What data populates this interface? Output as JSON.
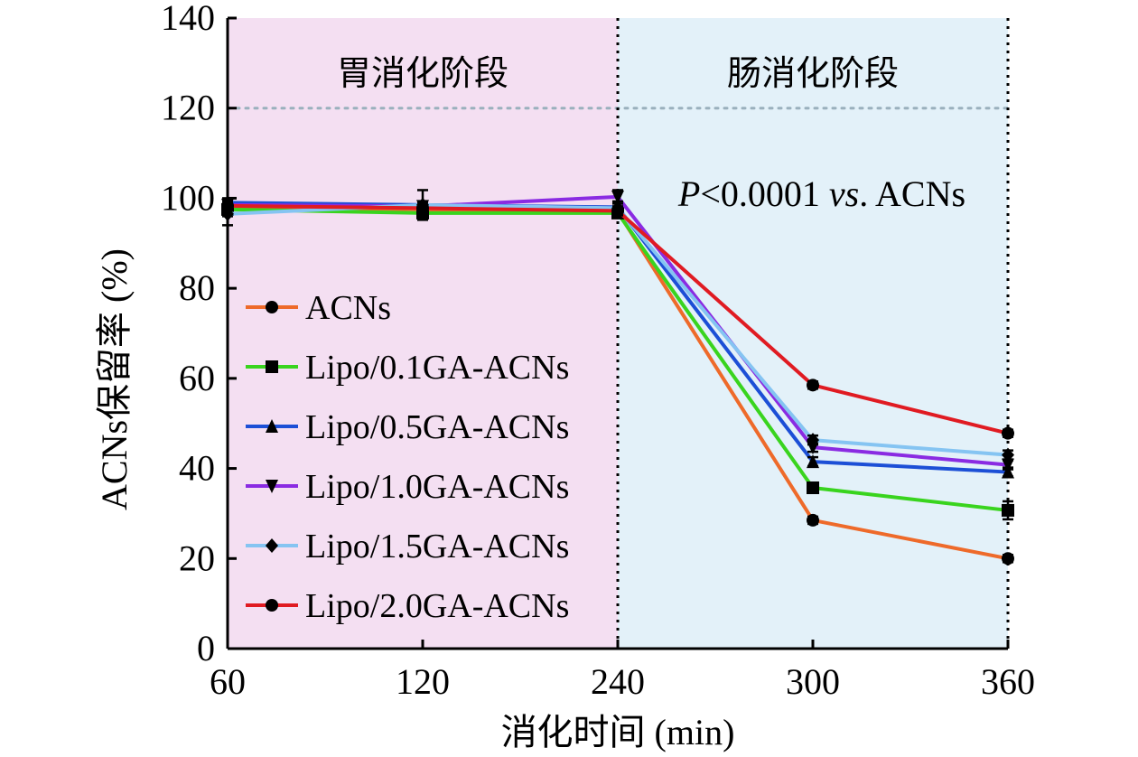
{
  "chart_data": {
    "type": "line",
    "xlabel": "消化时间 (min)",
    "ylabel": "ACNs保留率 (%)",
    "categories": [
      "60",
      "120",
      "240",
      "300",
      "360"
    ],
    "ylim": [
      0,
      140
    ],
    "yticks": [
      0,
      20,
      40,
      60,
      80,
      100,
      120,
      140
    ],
    "reference_line_y": 120,
    "grid": false,
    "legend_position": "left-middle",
    "regions": [
      {
        "label": "胃消化阶段",
        "from": "60",
        "to": "240",
        "color": "#f4dff2"
      },
      {
        "label": "肠消化阶段",
        "from": "240",
        "to": "360",
        "color": "#e3f1f9"
      }
    ],
    "annotation": {
      "italic_p": "P",
      "rest1": "<0.0001 ",
      "italic_vs": "vs",
      "rest2": ". ACNs"
    },
    "series": [
      {
        "name": "ACNs",
        "color": "#ee6a2a",
        "marker": "circle",
        "values": [
          98,
          97.5,
          97,
          28.5,
          20
        ],
        "errors": [
          0.8,
          0.6,
          0.8,
          0.8,
          0.8
        ]
      },
      {
        "name": "Lipo/0.1GA-ACNs",
        "color": "#39d41e",
        "marker": "square",
        "values": [
          97.5,
          96.7,
          96.7,
          35.7,
          30.7
        ],
        "errors": [
          1.5,
          0.8,
          1,
          0.8,
          2
        ]
      },
      {
        "name": "Lipo/0.5GA-ACNs",
        "color": "#1c4fd6",
        "marker": "triangle-up",
        "values": [
          99,
          98.5,
          98,
          41.5,
          39.2
        ],
        "errors": [
          1,
          0.8,
          1,
          1,
          1
        ]
      },
      {
        "name": "Lipo/1.0GA-ACNs",
        "color": "#8a2be2",
        "marker": "triangle-down",
        "values": [
          98.5,
          98.2,
          100.3,
          44.7,
          40.8
        ],
        "errors": [
          1,
          0.8,
          1.5,
          1,
          1
        ]
      },
      {
        "name": "Lipo/1.5GA-ACNs",
        "color": "#85c4f2",
        "marker": "diamond",
        "values": [
          96.5,
          98.5,
          97.8,
          46.3,
          43
        ],
        "errors": [
          2.5,
          3.3,
          1.5,
          1,
          1
        ]
      },
      {
        "name": "Lipo/2.0GA-ACNs",
        "color": "#e01b22",
        "marker": "circle",
        "values": [
          98.3,
          97.8,
          97.2,
          58.5,
          47.8
        ],
        "errors": [
          1,
          0.8,
          1,
          0.8,
          0.8
        ]
      }
    ]
  }
}
